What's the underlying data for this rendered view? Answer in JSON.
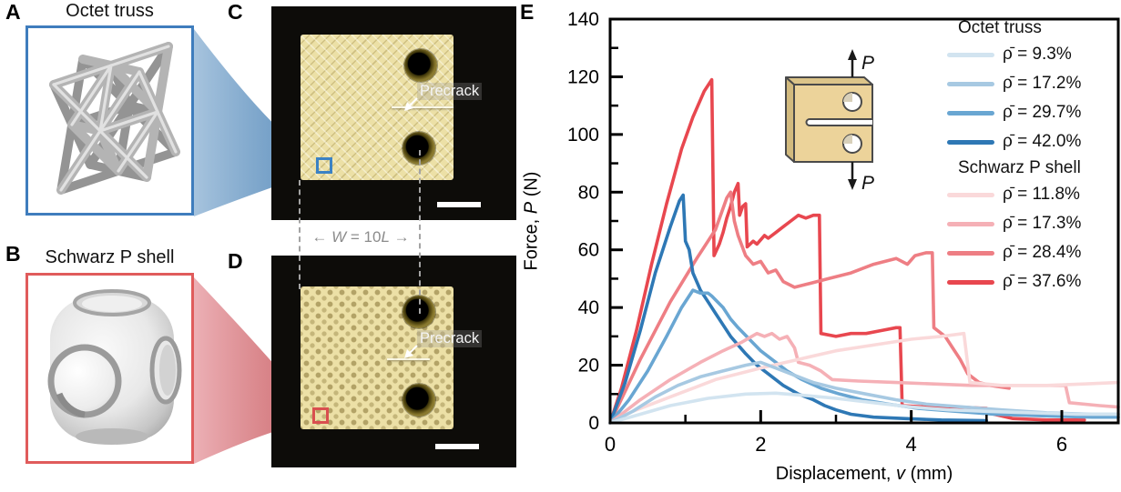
{
  "panel_a": {
    "label": "A",
    "title": "Octet truss"
  },
  "panel_b": {
    "label": "B",
    "title": "Schwarz P shell"
  },
  "panel_c": {
    "label": "C",
    "precrack_label": "Precrack"
  },
  "panel_d": {
    "label": "D",
    "precrack_label": "Precrack"
  },
  "dimension": {
    "arrow_left": "←",
    "w_var": "W",
    "equals": " = 10",
    "l_var": "L",
    "arrow_right": "→"
  },
  "panel_e": {
    "label": "E",
    "inset": {
      "p_top": "P",
      "p_bottom": "P"
    }
  },
  "chart_data": {
    "type": "line",
    "title": "",
    "xlabel": "Displacement, v (mm)",
    "ylabel": "Force, P (N)",
    "xlabel_parts": {
      "pre": "Displacement, ",
      "var": "v",
      "post": " (mm)"
    },
    "ylabel_parts": {
      "pre": "Force, ",
      "var": "P",
      "post": " (N)"
    },
    "xlim": [
      0,
      6.75
    ],
    "ylim": [
      0,
      140
    ],
    "xticks": [
      0,
      2,
      4,
      6
    ],
    "xminorticks": [
      1,
      3,
      5
    ],
    "yticks": [
      0,
      20,
      40,
      60,
      80,
      100,
      120,
      140
    ],
    "yminorticks": [
      10,
      30,
      50,
      70,
      90,
      110,
      130
    ],
    "grid": false,
    "legend_position": "top-right",
    "groups": [
      {
        "name": "Octet truss",
        "series": [
          {
            "label": "ρ̄ = 9.3%",
            "color": "#d2e4f0",
            "points": [
              [
                0,
                0
              ],
              [
                0.4,
                3
              ],
              [
                0.8,
                6
              ],
              [
                1.3,
                8.5
              ],
              [
                1.8,
                10
              ],
              [
                2.2,
                10.3
              ],
              [
                2.6,
                9.5
              ],
              [
                3,
                8.5
              ],
              [
                3.5,
                7
              ],
              [
                4,
                5.5
              ],
              [
                4.5,
                4.5
              ],
              [
                5,
                4
              ],
              [
                5.6,
                3.5
              ],
              [
                6.2,
                3
              ],
              [
                6.75,
                3
              ]
            ]
          },
          {
            "label": "ρ̄ = 17.2%",
            "color": "#a7c9e2",
            "points": [
              [
                0,
                0
              ],
              [
                0.3,
                4
              ],
              [
                0.6,
                9
              ],
              [
                0.9,
                13
              ],
              [
                1.2,
                16
              ],
              [
                1.5,
                18
              ],
              [
                1.8,
                20
              ],
              [
                2,
                21
              ],
              [
                2.1,
                20
              ],
              [
                2.2,
                19
              ],
              [
                2.4,
                17
              ],
              [
                2.7,
                14
              ],
              [
                3,
                12
              ],
              [
                3.4,
                10
              ],
              [
                3.8,
                8
              ],
              [
                4.2,
                6.5
              ],
              [
                4.7,
                5.5
              ],
              [
                5.2,
                4.5
              ],
              [
                5.8,
                3.5
              ],
              [
                6.4,
                3
              ],
              [
                6.75,
                3
              ]
            ]
          },
          {
            "label": "ρ̄ = 29.7%",
            "color": "#69a6d2",
            "points": [
              [
                0,
                0
              ],
              [
                0.25,
                8
              ],
              [
                0.5,
                18
              ],
              [
                0.75,
                30
              ],
              [
                0.95,
                40
              ],
              [
                1.1,
                46
              ],
              [
                1.2,
                45
              ],
              [
                1.3,
                45
              ],
              [
                1.35,
                44
              ],
              [
                1.5,
                40
              ],
              [
                1.6,
                36
              ],
              [
                1.7,
                33
              ],
              [
                1.85,
                29
              ],
              [
                2,
                25
              ],
              [
                2.15,
                22
              ],
              [
                2.35,
                18
              ],
              [
                2.55,
                15
              ],
              [
                2.8,
                12
              ],
              [
                3.05,
                10
              ],
              [
                3.35,
                8
              ],
              [
                3.7,
                6.5
              ],
              [
                4.1,
                5
              ],
              [
                4.6,
                4
              ],
              [
                5.1,
                3
              ],
              [
                5.7,
                2.5
              ],
              [
                6.4,
                2
              ],
              [
                6.75,
                2
              ]
            ]
          },
          {
            "label": "ρ̄ = 42.0%",
            "color": "#2e78b5",
            "points": [
              [
                0,
                0
              ],
              [
                0.2,
                14
              ],
              [
                0.4,
                32
              ],
              [
                0.6,
                52
              ],
              [
                0.8,
                68
              ],
              [
                0.92,
                77
              ],
              [
                0.97,
                79
              ],
              [
                1,
                63
              ],
              [
                1.05,
                60
              ],
              [
                1.1,
                52
              ],
              [
                1.2,
                46
              ],
              [
                1.3,
                42
              ],
              [
                1.4,
                38
              ],
              [
                1.5,
                34
              ],
              [
                1.6,
                30
              ],
              [
                1.7,
                27
              ],
              [
                1.8,
                24
              ],
              [
                1.95,
                20
              ],
              [
                2.1,
                17
              ],
              [
                2.3,
                13
              ],
              [
                2.5,
                10
              ],
              [
                2.7,
                8
              ],
              [
                2.85,
                6
              ],
              [
                3,
                4.5
              ],
              [
                3.2,
                3
              ],
              [
                3.5,
                2
              ],
              [
                3.9,
                1.5
              ],
              [
                4.4,
                1
              ],
              [
                5,
                0.8
              ]
            ]
          }
        ]
      },
      {
        "name": "Schwarz P shell",
        "series": [
          {
            "label": "ρ̄ = 11.8%",
            "color": "#fad9da",
            "points": [
              [
                0,
                0
              ],
              [
                0.3,
                4
              ],
              [
                0.7,
                8
              ],
              [
                1,
                11
              ],
              [
                1.4,
                15
              ],
              [
                2,
                19
              ],
              [
                2.5,
                22
              ],
              [
                3,
                25
              ],
              [
                3.5,
                27
              ],
              [
                4,
                29
              ],
              [
                4.4,
                30
              ],
              [
                4.7,
                31
              ],
              [
                4.78,
                14
              ],
              [
                5.2,
                13
              ],
              [
                5.8,
                13
              ],
              [
                6.3,
                13.5
              ],
              [
                6.75,
                14
              ]
            ]
          },
          {
            "label": "ρ̄ = 17.3%",
            "color": "#f5b0b6",
            "points": [
              [
                0,
                0
              ],
              [
                0.4,
                8
              ],
              [
                0.8,
                15
              ],
              [
                1.2,
                21
              ],
              [
                1.5,
                25
              ],
              [
                1.75,
                28
              ],
              [
                1.95,
                31
              ],
              [
                2.05,
                30
              ],
              [
                2.15,
                31
              ],
              [
                2.25,
                29
              ],
              [
                2.35,
                30
              ],
              [
                2.45,
                26
              ],
              [
                2.5,
                21
              ],
              [
                2.65,
                20
              ],
              [
                2.8,
                18
              ],
              [
                2.95,
                15
              ],
              [
                3.3,
                14.5
              ],
              [
                3.8,
                14
              ],
              [
                4.3,
                13.5
              ],
              [
                4.8,
                13
              ],
              [
                5.4,
                13
              ],
              [
                6.05,
                13
              ],
              [
                6.1,
                7
              ],
              [
                6.5,
                6
              ],
              [
                6.75,
                5.5
              ]
            ]
          },
          {
            "label": "ρ̄ = 28.4%",
            "color": "#ee7e84",
            "points": [
              [
                0,
                0
              ],
              [
                0.4,
                22
              ],
              [
                0.8,
                42
              ],
              [
                1.15,
                57
              ],
              [
                1.4,
                67
              ],
              [
                1.55,
                78
              ],
              [
                1.6,
                80
              ],
              [
                1.65,
                70
              ],
              [
                1.7,
                65
              ],
              [
                1.8,
                58
              ],
              [
                1.9,
                55
              ],
              [
                2,
                56
              ],
              [
                2.1,
                52
              ],
              [
                2.2,
                53
              ],
              [
                2.3,
                49
              ],
              [
                2.45,
                47
              ],
              [
                2.6,
                48
              ],
              [
                2.9,
                50
              ],
              [
                3.2,
                52
              ],
              [
                3.5,
                55
              ],
              [
                3.8,
                57
              ],
              [
                3.95,
                55
              ],
              [
                4.05,
                58
              ],
              [
                4.2,
                59
              ],
              [
                4.28,
                59
              ],
              [
                4.3,
                33
              ],
              [
                4.45,
                30
              ],
              [
                4.55,
                26
              ],
              [
                4.65,
                22
              ],
              [
                4.75,
                17
              ],
              [
                4.9,
                14
              ],
              [
                5.05,
                13
              ],
              [
                5.3,
                12
              ]
            ]
          },
          {
            "label": "ρ̄ = 37.6%",
            "color": "#e8474f",
            "points": [
              [
                0,
                0
              ],
              [
                0.15,
                12
              ],
              [
                0.35,
                32
              ],
              [
                0.55,
                55
              ],
              [
                0.75,
                76
              ],
              [
                0.95,
                95
              ],
              [
                1.1,
                106
              ],
              [
                1.25,
                115
              ],
              [
                1.35,
                119
              ],
              [
                1.38,
                58
              ],
              [
                1.45,
                62
              ],
              [
                1.5,
                66
              ],
              [
                1.55,
                71
              ],
              [
                1.6,
                75
              ],
              [
                1.65,
                80
              ],
              [
                1.7,
                83
              ],
              [
                1.72,
                72
              ],
              [
                1.76,
                75
              ],
              [
                1.8,
                76
              ],
              [
                1.82,
                61
              ],
              [
                1.9,
                63
              ],
              [
                1.95,
                62
              ],
              [
                2.05,
                65
              ],
              [
                2.1,
                64
              ],
              [
                2.2,
                66
              ],
              [
                2.3,
                68
              ],
              [
                2.4,
                70
              ],
              [
                2.5,
                72
              ],
              [
                2.6,
                71
              ],
              [
                2.7,
                72
              ],
              [
                2.78,
                72
              ],
              [
                2.8,
                31
              ],
              [
                3,
                30
              ],
              [
                3.2,
                31
              ],
              [
                3.4,
                31
              ],
              [
                3.6,
                32
              ],
              [
                3.8,
                33
              ],
              [
                3.85,
                33
              ],
              [
                3.88,
                6
              ],
              [
                4.2,
                5.5
              ],
              [
                4.6,
                5.5
              ],
              [
                5,
                5
              ],
              [
                5.1,
                3
              ],
              [
                5.35,
                1.5
              ],
              [
                5.8,
                1
              ],
              [
                6.3,
                1
              ]
            ]
          }
        ]
      }
    ],
    "draw_order": [
      [
        0,
        0
      ],
      [
        0,
        1
      ],
      [
        1,
        0
      ],
      [
        1,
        1
      ],
      [
        0,
        2
      ],
      [
        0,
        3
      ],
      [
        1,
        2
      ],
      [
        1,
        3
      ]
    ]
  }
}
